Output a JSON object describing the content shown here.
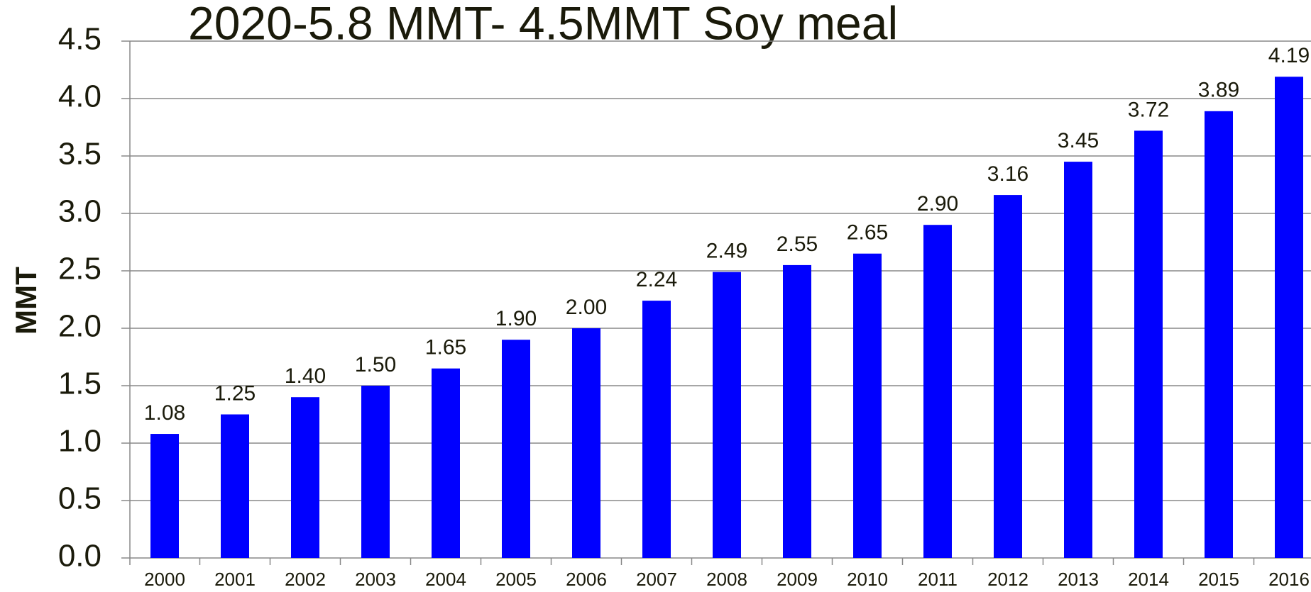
{
  "chart_data": {
    "type": "bar",
    "title": "2020-5.8 MMT- 4.5MMT Soy meal",
    "y_label": "MMT",
    "categories": [
      "2000",
      "2001",
      "2002",
      "2003",
      "2004",
      "2005",
      "2006",
      "2007",
      "2008",
      "2009",
      "2010",
      "2011",
      "2012",
      "2013",
      "2014",
      "2015",
      "2016"
    ],
    "values": [
      1.08,
      1.25,
      1.4,
      1.5,
      1.65,
      1.9,
      2.0,
      2.24,
      2.49,
      2.55,
      2.65,
      2.9,
      3.16,
      3.45,
      3.72,
      3.89,
      4.19
    ],
    "value_labels": [
      "1.08",
      "1.25",
      "1.40",
      "1.50",
      "1.65",
      "1.90",
      "2.00",
      "2.24",
      "2.49",
      "2.55",
      "2.65",
      "2.90",
      "3.16",
      "3.45",
      "3.72",
      "3.89",
      "4.19"
    ],
    "color": "#0000ff",
    "ylim": [
      0,
      4.5
    ],
    "yticks": [
      {
        "value": 0,
        "label": "0.0"
      },
      0.5,
      {
        "value": 1,
        "label": "1.0"
      },
      1.5,
      {
        "value": 2,
        "label": "2.0"
      },
      2.5,
      {
        "value": 3,
        "label": "3.0"
      },
      3.5,
      {
        "value": 4,
        "label": "4.0"
      },
      4.5
    ],
    "grid": true
  }
}
